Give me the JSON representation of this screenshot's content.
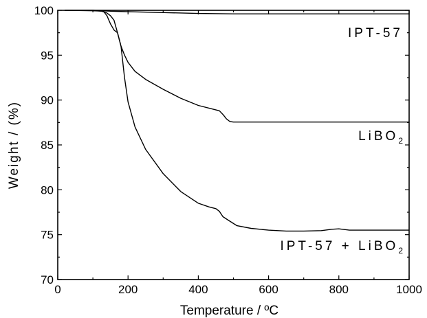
{
  "chart_data": {
    "type": "line",
    "title": "",
    "xlabel": "Temperature  / ºC",
    "ylabel": "Weight / (%)",
    "xlim": [
      0,
      1000
    ],
    "ylim": [
      70,
      100
    ],
    "x_ticks": [
      "0",
      "200",
      "400",
      "600",
      "800",
      "1000"
    ],
    "y_ticks": [
      "70",
      "75",
      "80",
      "85",
      "90",
      "95",
      "100"
    ],
    "grid": false,
    "legend": "none (series labeled inline at right)",
    "series": [
      {
        "name": "IPT-57",
        "label_main": "IPT-57",
        "label_sub": "",
        "points": [
          [
            20,
            100
          ],
          [
            100,
            100
          ],
          [
            150,
            99.9
          ],
          [
            200,
            99.85
          ],
          [
            300,
            99.75
          ],
          [
            400,
            99.65
          ],
          [
            500,
            99.6
          ],
          [
            600,
            99.6
          ],
          [
            700,
            99.6
          ],
          [
            800,
            99.6
          ],
          [
            900,
            99.6
          ],
          [
            1000,
            99.6
          ]
        ]
      },
      {
        "name": "LiBO2",
        "label_main": "LiBO",
        "label_sub": "2",
        "points": [
          [
            20,
            100
          ],
          [
            100,
            100
          ],
          [
            125,
            99.9
          ],
          [
            140,
            99.7
          ],
          [
            150,
            99.4
          ],
          [
            160,
            98.9
          ],
          [
            170,
            97.5
          ],
          [
            180,
            96.0
          ],
          [
            190,
            95.0
          ],
          [
            200,
            94.2
          ],
          [
            220,
            93.2
          ],
          [
            250,
            92.3
          ],
          [
            300,
            91.2
          ],
          [
            350,
            90.2
          ],
          [
            400,
            89.4
          ],
          [
            440,
            89.0
          ],
          [
            460,
            88.8
          ],
          [
            470,
            88.4
          ],
          [
            480,
            87.9
          ],
          [
            490,
            87.6
          ],
          [
            500,
            87.55
          ],
          [
            600,
            87.55
          ],
          [
            700,
            87.55
          ],
          [
            800,
            87.55
          ],
          [
            900,
            87.55
          ],
          [
            1000,
            87.55
          ]
        ]
      },
      {
        "name": "IPT-57 + LiBO2",
        "label_main": "IPT-57 + LiBO",
        "label_sub": "2",
        "points": [
          [
            20,
            100
          ],
          [
            100,
            99.95
          ],
          [
            130,
            99.9
          ],
          [
            140,
            99.4
          ],
          [
            150,
            98.5
          ],
          [
            160,
            97.8
          ],
          [
            170,
            97.5
          ],
          [
            180,
            96.0
          ],
          [
            190,
            92.5
          ],
          [
            200,
            89.8
          ],
          [
            220,
            87.0
          ],
          [
            250,
            84.5
          ],
          [
            300,
            81.8
          ],
          [
            350,
            79.8
          ],
          [
            400,
            78.5
          ],
          [
            430,
            78.1
          ],
          [
            450,
            77.9
          ],
          [
            460,
            77.6
          ],
          [
            470,
            77.0
          ],
          [
            490,
            76.5
          ],
          [
            510,
            76.0
          ],
          [
            550,
            75.7
          ],
          [
            600,
            75.5
          ],
          [
            650,
            75.4
          ],
          [
            700,
            75.4
          ],
          [
            750,
            75.45
          ],
          [
            780,
            75.6
          ],
          [
            800,
            75.65
          ],
          [
            830,
            75.5
          ],
          [
            900,
            75.5
          ],
          [
            1000,
            75.5
          ]
        ]
      }
    ]
  }
}
